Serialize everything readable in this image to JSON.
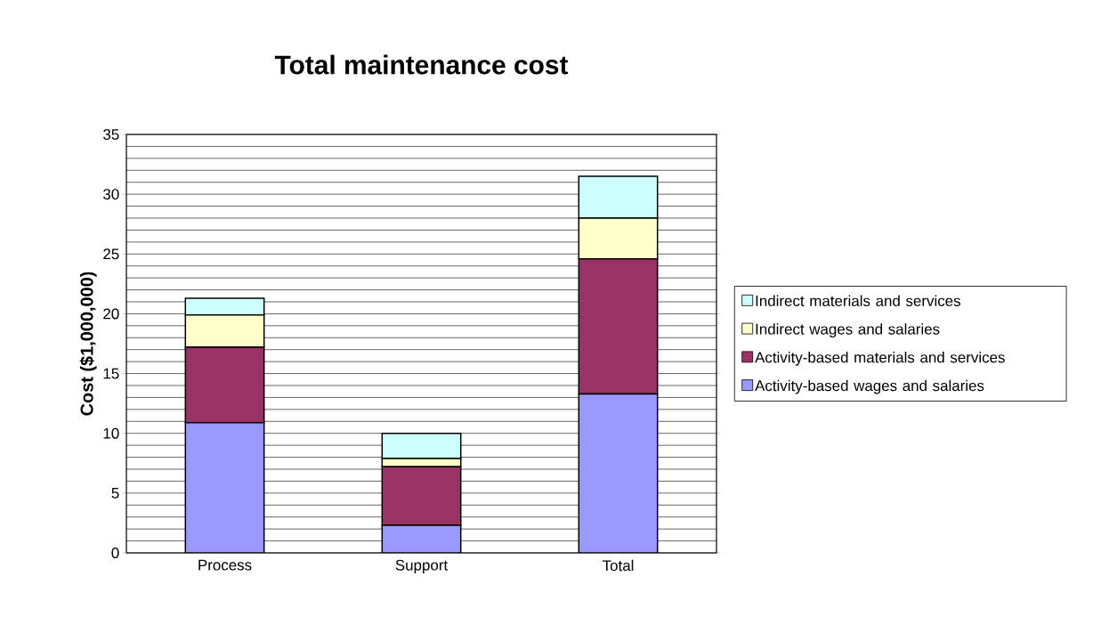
{
  "chart_data": {
    "type": "bar",
    "title": "Total maintenance cost",
    "ylabel": "Cost ($1,000,000)",
    "categories": [
      "Process",
      "Support",
      "Total"
    ],
    "stacked": true,
    "ylim": [
      0,
      35
    ],
    "yticks": [
      0,
      5,
      10,
      15,
      20,
      25,
      30,
      35
    ],
    "grid": "y",
    "legend": "right",
    "series": [
      {
        "name": "Activity-based wages and salaries",
        "color": "#9999ff",
        "values": [
          10.9,
          2.3,
          13.3
        ]
      },
      {
        "name": "Activity-based materials and services",
        "color": "#993366",
        "values": [
          6.3,
          4.9,
          11.3
        ]
      },
      {
        "name": "Indirect wages and salaries",
        "color": "#ffffcc",
        "values": [
          2.7,
          0.7,
          3.4
        ]
      },
      {
        "name": "Indirect materials and services",
        "color": "#ccffff",
        "values": [
          1.4,
          2.1,
          3.5
        ]
      }
    ]
  }
}
